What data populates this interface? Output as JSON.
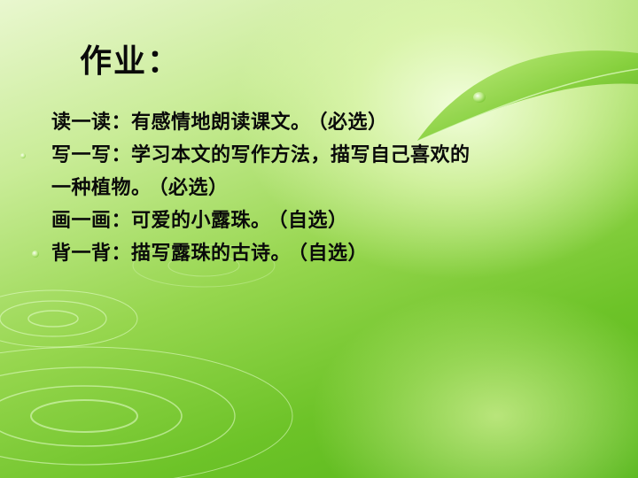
{
  "slide": {
    "title": "作业：",
    "tasks": [
      {
        "label": "读一读",
        "lines": [
          "有感情地朗读课文。"
        ],
        "tag": "（必选）"
      },
      {
        "label": "写一写",
        "lines": [
          "学习本文的写作方法，描写自己喜欢的",
          "一种植物。"
        ],
        "tag": "（必选）"
      },
      {
        "label": "画一画",
        "lines": [
          "可爱的小露珠。"
        ],
        "tag": "（自选）"
      },
      {
        "label": "背一背",
        "lines": [
          "描写露珠的古诗。"
        ],
        "tag": "（自选）"
      }
    ]
  }
}
